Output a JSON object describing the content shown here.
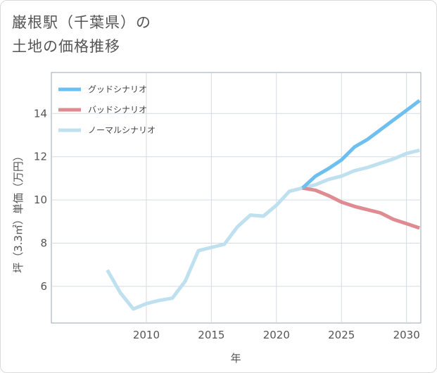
{
  "page": {
    "title_line1": "巌根駅（千葉県）の",
    "title_line2": "土地の価格推移"
  },
  "chart_data": {
    "type": "line",
    "title": "巌根駅（千葉県）の土地の価格推移",
    "xlabel": "年",
    "ylabel": "坪（3.3㎡）単価（万円）",
    "xlim": [
      2002.7,
      2031.1
    ],
    "ylim": [
      4.3,
      15.9
    ],
    "xticks": [
      2010,
      2015,
      2020,
      2025,
      2030
    ],
    "yticks": [
      6,
      8,
      10,
      12,
      14
    ],
    "grid": true,
    "legend_position": "top-left",
    "series": [
      {
        "name": "グッドシナリオ",
        "color": "#6cbfef",
        "x": [
          2022,
          2023,
          2024,
          2025,
          2026,
          2027,
          2028,
          2029,
          2030,
          2031
        ],
        "values": [
          10.55,
          11.1,
          11.45,
          11.85,
          12.45,
          12.8,
          13.25,
          13.7,
          14.15,
          14.6
        ]
      },
      {
        "name": "バッドシナリオ",
        "color": "#e08a92",
        "x": [
          2022,
          2023,
          2024,
          2025,
          2026,
          2027,
          2028,
          2029,
          2030,
          2031
        ],
        "values": [
          10.55,
          10.45,
          10.2,
          9.9,
          9.7,
          9.55,
          9.4,
          9.1,
          8.9,
          8.7
        ]
      },
      {
        "name": "ノーマルシナリオ",
        "color": "#bfe0ef",
        "x": [
          2007,
          2008,
          2009,
          2010,
          2011,
          2012,
          2013,
          2014,
          2015,
          2016,
          2017,
          2018,
          2019,
          2020,
          2021,
          2022,
          2023,
          2024,
          2025,
          2026,
          2027,
          2028,
          2029,
          2030,
          2031
        ],
        "values": [
          6.75,
          5.7,
          4.95,
          5.2,
          5.35,
          5.45,
          6.25,
          7.65,
          7.8,
          7.95,
          8.75,
          9.3,
          9.25,
          9.75,
          10.4,
          10.55,
          10.7,
          10.95,
          11.1,
          11.35,
          11.5,
          11.7,
          11.9,
          12.15,
          12.3
        ]
      }
    ]
  }
}
